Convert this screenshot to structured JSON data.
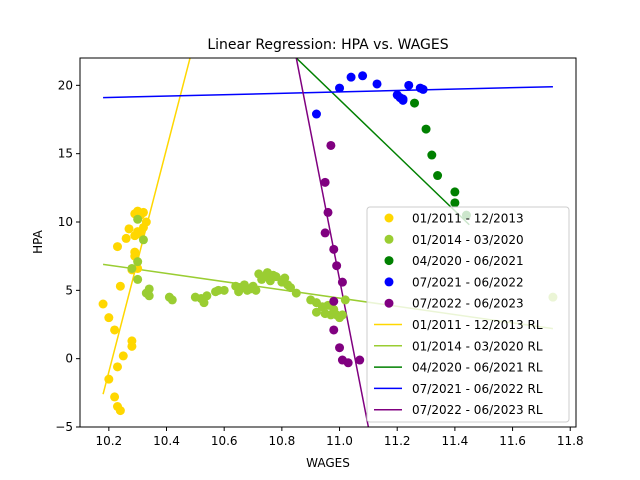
{
  "chart_data": {
    "type": "scatter",
    "title": "Linear Regression: HPA vs. WAGES",
    "xlabel": "WAGES",
    "ylabel": "HPA",
    "xlim": [
      10.1,
      11.82
    ],
    "ylim": [
      -5,
      22
    ],
    "xticks": [
      10.2,
      10.4,
      10.6,
      10.8,
      11.0,
      11.2,
      11.4,
      11.6,
      11.8
    ],
    "xtick_labels": [
      "10.2",
      "10.4",
      "10.6",
      "10.8",
      "11.0",
      "11.2",
      "11.4",
      "11.6",
      "11.8"
    ],
    "yticks": [
      -5,
      0,
      5,
      10,
      15,
      20
    ],
    "ytick_labels": [
      "−5",
      "0",
      "5",
      "10",
      "15",
      "20"
    ],
    "grid": false,
    "legend_position": "lower-right",
    "series": [
      {
        "name": "01/2011 - 12/2013",
        "color": "#FFD700",
        "points": [
          [
            10.18,
            4.0
          ],
          [
            10.2,
            3.0
          ],
          [
            10.2,
            -1.5
          ],
          [
            10.22,
            2.1
          ],
          [
            10.22,
            -2.8
          ],
          [
            10.23,
            -3.5
          ],
          [
            10.24,
            -3.8
          ],
          [
            10.23,
            -0.6
          ],
          [
            10.23,
            8.2
          ],
          [
            10.24,
            5.3
          ],
          [
            10.25,
            0.2
          ],
          [
            10.26,
            8.8
          ],
          [
            10.27,
            9.5
          ],
          [
            10.28,
            6.5
          ],
          [
            10.28,
            1.3
          ],
          [
            10.28,
            0.9
          ],
          [
            10.29,
            7.8
          ],
          [
            10.29,
            9.0
          ],
          [
            10.29,
            10.6
          ],
          [
            10.3,
            9.3
          ],
          [
            10.3,
            10.8
          ],
          [
            10.31,
            10.5
          ],
          [
            10.31,
            9.1
          ],
          [
            10.32,
            9.6
          ],
          [
            10.32,
            10.7
          ],
          [
            10.33,
            10.0
          ],
          [
            10.29,
            7.5
          ],
          [
            10.3,
            6.6
          ]
        ]
      },
      {
        "name": "01/2014 - 03/2020",
        "color": "#9ACD32",
        "points": [
          [
            10.28,
            6.6
          ],
          [
            10.3,
            10.2
          ],
          [
            10.3,
            7.1
          ],
          [
            10.3,
            5.8
          ],
          [
            10.32,
            8.7
          ],
          [
            10.33,
            4.8
          ],
          [
            10.34,
            4.6
          ],
          [
            10.34,
            5.1
          ],
          [
            10.41,
            4.5
          ],
          [
            10.42,
            4.3
          ],
          [
            10.5,
            4.5
          ],
          [
            10.52,
            4.4
          ],
          [
            10.53,
            4.1
          ],
          [
            10.54,
            4.6
          ],
          [
            10.57,
            4.9
          ],
          [
            10.58,
            5.0
          ],
          [
            10.6,
            5.0
          ],
          [
            10.64,
            5.3
          ],
          [
            10.65,
            4.9
          ],
          [
            10.66,
            5.2
          ],
          [
            10.67,
            5.4
          ],
          [
            10.68,
            5.0
          ],
          [
            10.69,
            5.1
          ],
          [
            10.7,
            5.3
          ],
          [
            10.71,
            5.0
          ],
          [
            10.72,
            6.2
          ],
          [
            10.73,
            5.8
          ],
          [
            10.74,
            6.0
          ],
          [
            10.75,
            6.3
          ],
          [
            10.76,
            5.7
          ],
          [
            10.77,
            6.1
          ],
          [
            10.78,
            6.0
          ],
          [
            10.8,
            5.6
          ],
          [
            10.81,
            5.9
          ],
          [
            10.82,
            5.4
          ],
          [
            10.83,
            5.2
          ],
          [
            10.85,
            4.8
          ],
          [
            10.9,
            4.3
          ],
          [
            10.92,
            3.4
          ],
          [
            10.92,
            4.1
          ],
          [
            10.94,
            3.8
          ],
          [
            10.95,
            3.3
          ],
          [
            10.96,
            3.9
          ],
          [
            10.97,
            3.2
          ],
          [
            10.98,
            3.6
          ],
          [
            10.99,
            3.2
          ],
          [
            11.0,
            3.0
          ],
          [
            11.01,
            3.2
          ],
          [
            11.02,
            4.3
          ],
          [
            11.74,
            4.5
          ]
        ]
      },
      {
        "name": "04/2020 - 06/2021",
        "color": "#008000",
        "points": [
          [
            11.26,
            18.7
          ],
          [
            11.3,
            16.8
          ],
          [
            11.32,
            14.9
          ],
          [
            11.34,
            13.4
          ],
          [
            11.4,
            12.2
          ],
          [
            11.4,
            11.4
          ],
          [
            11.44,
            10.5
          ]
        ]
      },
      {
        "name": "07/2021 - 06/2022",
        "color": "#0000FF",
        "points": [
          [
            10.92,
            17.9
          ],
          [
            11.0,
            19.8
          ],
          [
            11.04,
            20.6
          ],
          [
            11.08,
            20.7
          ],
          [
            11.13,
            20.1
          ],
          [
            11.2,
            19.3
          ],
          [
            11.21,
            19.1
          ],
          [
            11.22,
            18.9
          ],
          [
            11.22,
            19.0
          ],
          [
            11.24,
            20.0
          ],
          [
            11.28,
            19.8
          ],
          [
            11.29,
            19.7
          ]
        ]
      },
      {
        "name": "07/2022 - 06/2023",
        "color": "#800080",
        "points": [
          [
            10.97,
            15.6
          ],
          [
            10.95,
            12.9
          ],
          [
            10.96,
            10.7
          ],
          [
            10.95,
            9.2
          ],
          [
            10.98,
            8.0
          ],
          [
            10.99,
            6.8
          ],
          [
            11.01,
            5.6
          ],
          [
            10.98,
            4.2
          ],
          [
            10.98,
            2.1
          ],
          [
            11.0,
            0.8
          ],
          [
            11.01,
            -0.1
          ],
          [
            11.03,
            -0.3
          ],
          [
            11.07,
            -0.1
          ]
        ]
      }
    ],
    "regression_lines": [
      {
        "name": "01/2011 - 12/2013 RL",
        "color": "#FFD700",
        "x": [
          10.18,
          10.5
        ],
        "y": [
          -2.6,
          23.5
        ]
      },
      {
        "name": "01/2014 - 03/2020 RL",
        "color": "#9ACD32",
        "x": [
          10.18,
          11.74
        ],
        "y": [
          6.9,
          2.2
        ]
      },
      {
        "name": "04/2020 - 06/2021 RL",
        "color": "#008000",
        "x": [
          10.85,
          11.45
        ],
        "y": [
          22.0,
          9.8
        ]
      },
      {
        "name": "07/2021 - 06/2022 RL",
        "color": "#0000FF",
        "x": [
          10.18,
          11.74
        ],
        "y": [
          19.1,
          19.9
        ]
      },
      {
        "name": "07/2022 - 06/2023 RL",
        "color": "#800080",
        "x": [
          10.85,
          11.1
        ],
        "y": [
          22.0,
          -5.0
        ]
      }
    ]
  }
}
